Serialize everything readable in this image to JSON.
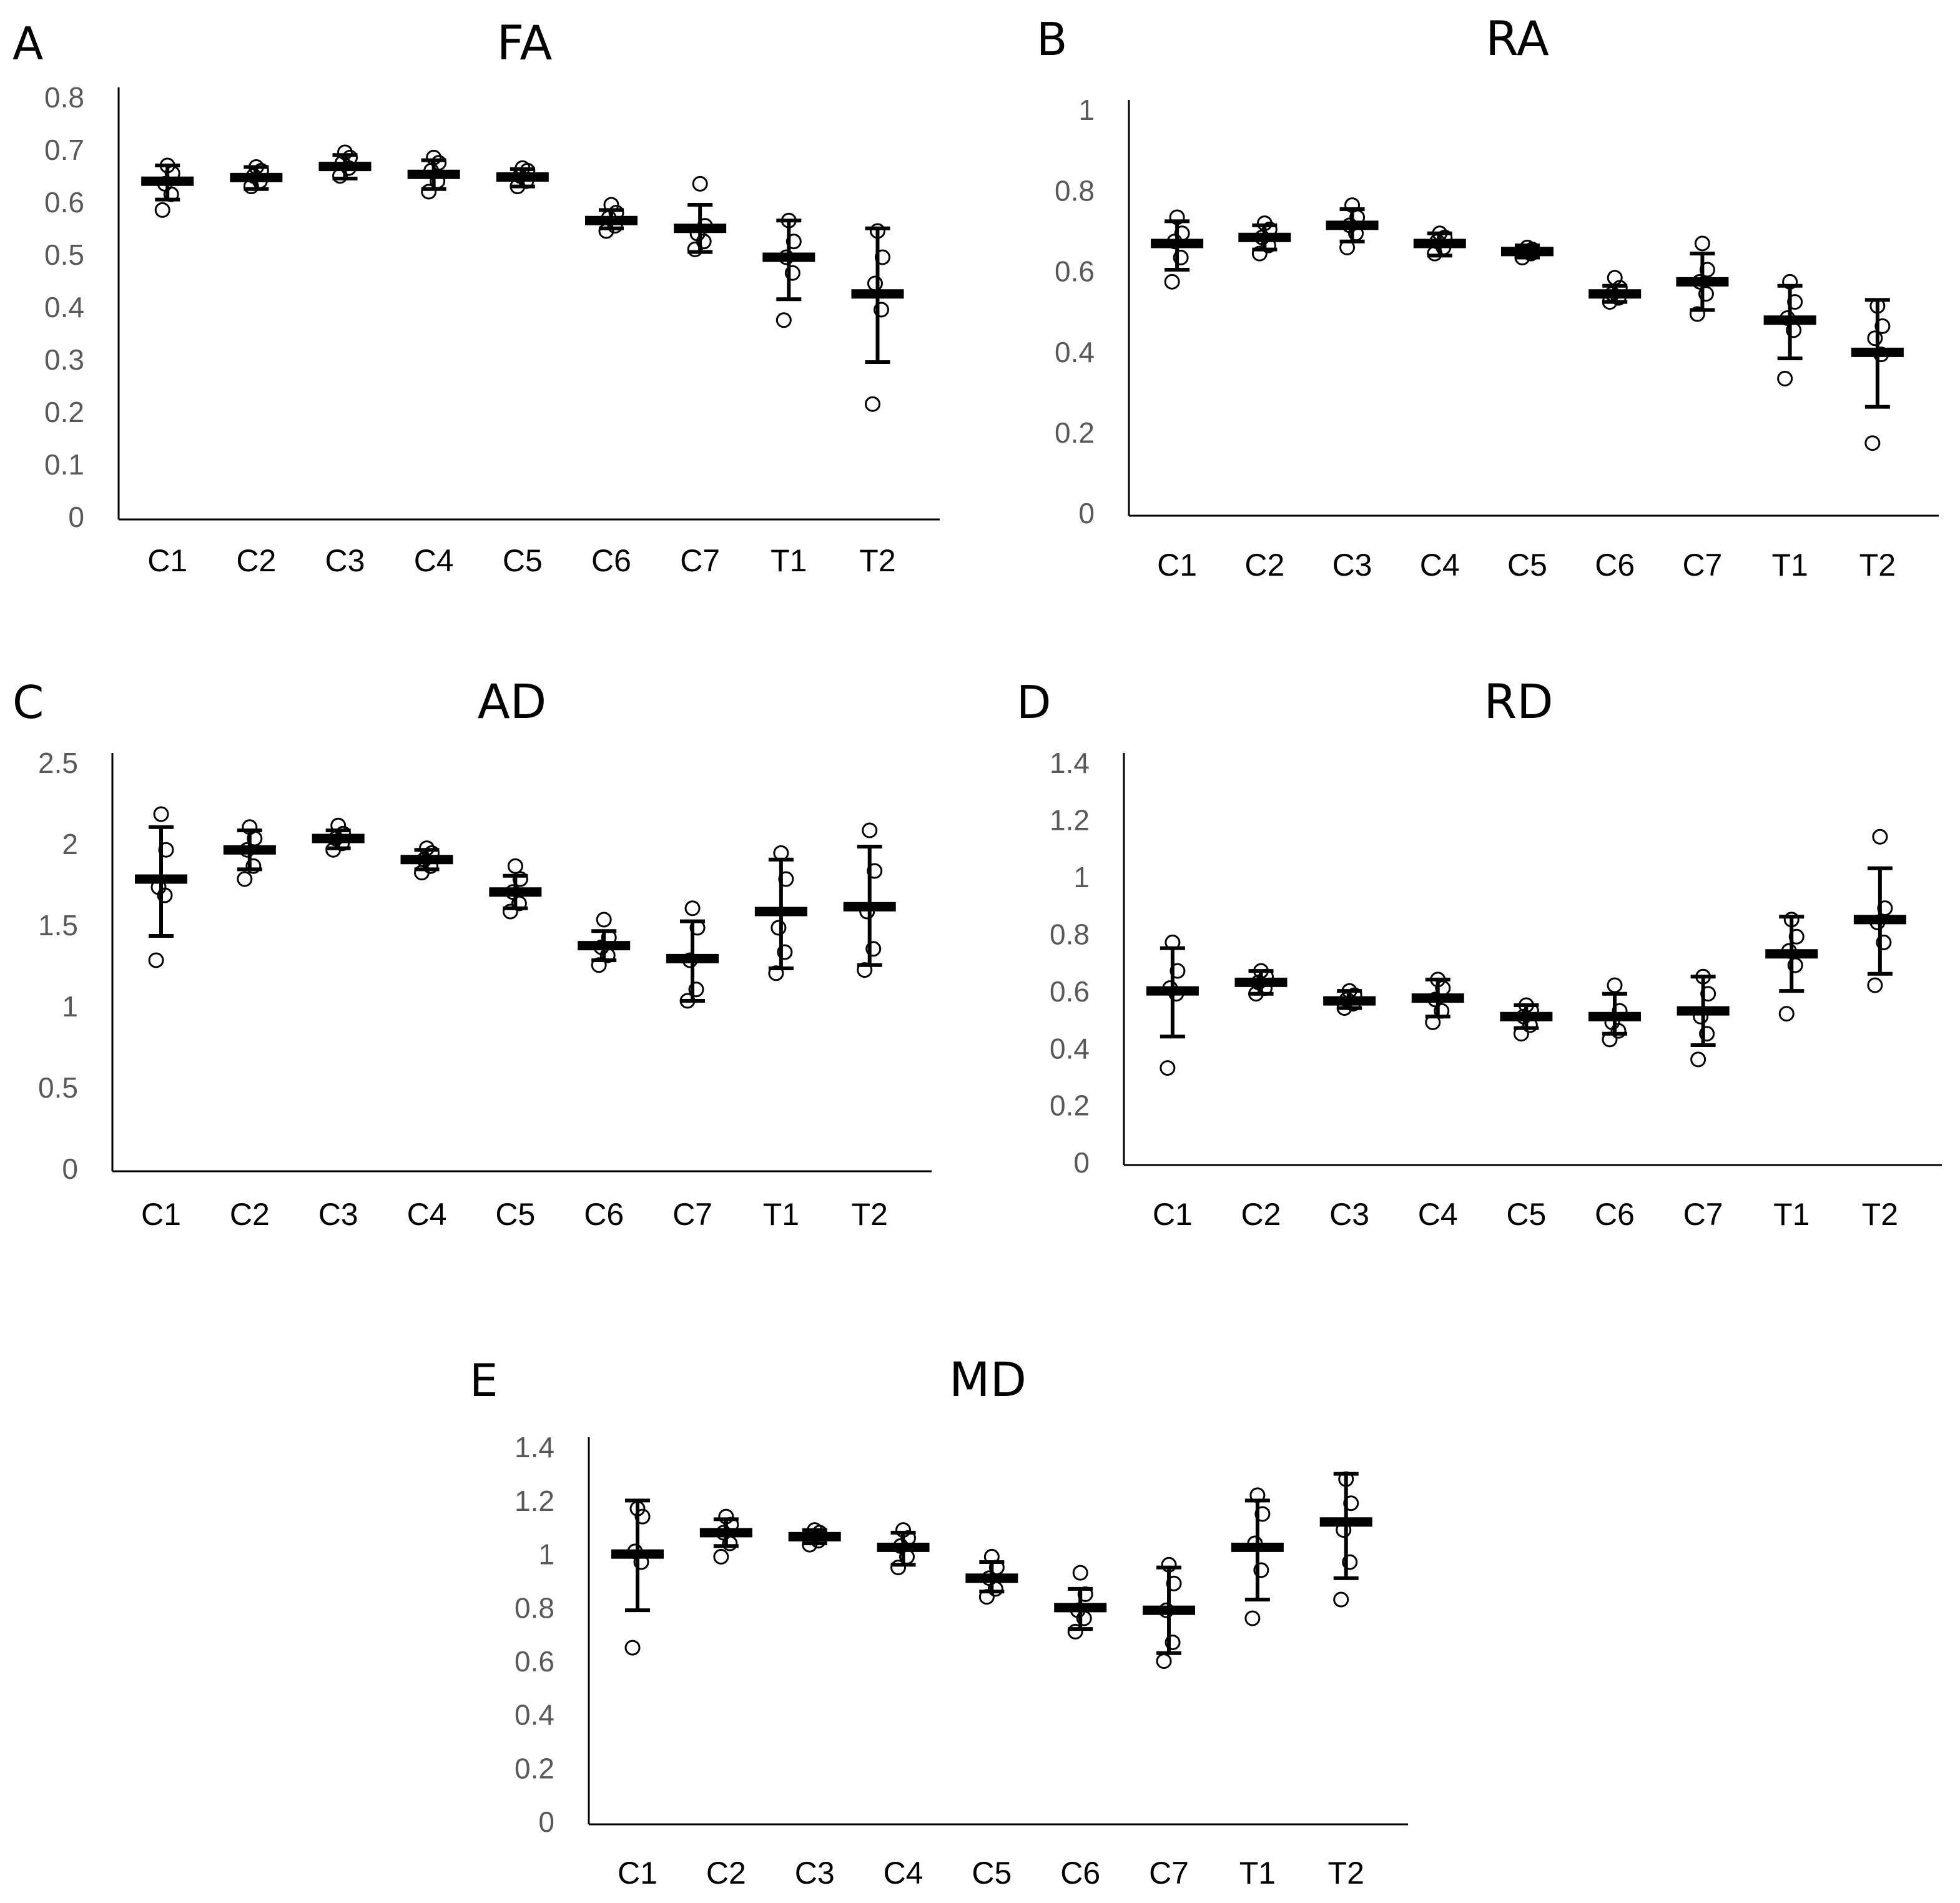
{
  "chart_data": [
    {
      "type": "scatter",
      "panel": "A",
      "title": "FA",
      "categories": [
        "C1",
        "C2",
        "C3",
        "C4",
        "C5",
        "C6",
        "C7",
        "T1",
        "T2"
      ],
      "ylim": [
        0,
        0.8
      ],
      "yticks": [
        "0",
        "0.1",
        "0.2",
        "0.3",
        "0.4",
        "0.5",
        "0.6",
        "0.7",
        "0.8"
      ],
      "mean": [
        0.645,
        0.652,
        0.673,
        0.658,
        0.653,
        0.57,
        0.555,
        0.5,
        0.43
      ],
      "err_low": [
        0.61,
        0.63,
        0.65,
        0.63,
        0.635,
        0.555,
        0.51,
        0.42,
        0.3
      ],
      "err_high": [
        0.675,
        0.672,
        0.695,
        0.685,
        0.668,
        0.59,
        0.6,
        0.57,
        0.555
      ],
      "points": [
        [
          0.59,
          0.62,
          0.64,
          0.66,
          0.675
        ],
        [
          0.635,
          0.645,
          0.655,
          0.665,
          0.672
        ],
        [
          0.655,
          0.67,
          0.68,
          0.69,
          0.7
        ],
        [
          0.625,
          0.645,
          0.665,
          0.68,
          0.69
        ],
        [
          0.635,
          0.645,
          0.655,
          0.665,
          0.67
        ],
        [
          0.55,
          0.56,
          0.575,
          0.585,
          0.6
        ],
        [
          0.515,
          0.53,
          0.545,
          0.56,
          0.64
        ],
        [
          0.38,
          0.47,
          0.5,
          0.53,
          0.57
        ],
        [
          0.22,
          0.4,
          0.45,
          0.5,
          0.55
        ]
      ]
    },
    {
      "type": "scatter",
      "panel": "B",
      "title": "RA",
      "categories": [
        "C1",
        "C2",
        "C3",
        "C4",
        "C5",
        "C6",
        "C7",
        "T1",
        "T2"
      ],
      "ylim": [
        0,
        1
      ],
      "yticks": [
        "0",
        "0.2",
        "0.4",
        "0.6",
        "0.8",
        "1"
      ],
      "mean": [
        0.675,
        0.69,
        0.72,
        0.675,
        0.655,
        0.55,
        0.58,
        0.485,
        0.405
      ],
      "err_low": [
        0.61,
        0.66,
        0.68,
        0.645,
        0.64,
        0.53,
        0.51,
        0.39,
        0.27
      ],
      "err_high": [
        0.73,
        0.72,
        0.76,
        0.7,
        0.67,
        0.57,
        0.65,
        0.57,
        0.535
      ],
      "points": [
        [
          0.58,
          0.64,
          0.68,
          0.7,
          0.74
        ],
        [
          0.65,
          0.67,
          0.69,
          0.71,
          0.725
        ],
        [
          0.665,
          0.7,
          0.72,
          0.74,
          0.77
        ],
        [
          0.65,
          0.665,
          0.68,
          0.69,
          0.7
        ],
        [
          0.64,
          0.65,
          0.655,
          0.66,
          0.665
        ],
        [
          0.53,
          0.54,
          0.55,
          0.565,
          0.59
        ],
        [
          0.5,
          0.55,
          0.58,
          0.61,
          0.675
        ],
        [
          0.34,
          0.46,
          0.49,
          0.53,
          0.58
        ],
        [
          0.18,
          0.4,
          0.44,
          0.47,
          0.52
        ]
      ]
    },
    {
      "type": "scatter",
      "panel": "C",
      "title": "AD",
      "categories": [
        "C1",
        "C2",
        "C3",
        "C4",
        "C5",
        "C6",
        "C7",
        "T1",
        "T2"
      ],
      "ylim": [
        0,
        2.5
      ],
      "yticks": [
        "0",
        "0.5",
        "1",
        "1.5",
        "2",
        "2.5"
      ],
      "mean": [
        1.8,
        1.98,
        2.05,
        1.92,
        1.72,
        1.39,
        1.31,
        1.6,
        1.63
      ],
      "err_low": [
        1.45,
        1.86,
        1.99,
        1.86,
        1.62,
        1.3,
        1.05,
        1.25,
        1.27
      ],
      "err_high": [
        2.12,
        2.1,
        2.1,
        1.98,
        1.82,
        1.48,
        1.54,
        1.92,
        2.0
      ],
      "points": [
        [
          1.3,
          1.7,
          1.75,
          1.98,
          2.2
        ],
        [
          1.8,
          1.88,
          1.98,
          2.05,
          2.12
        ],
        [
          1.98,
          2.02,
          2.05,
          2.08,
          2.13
        ],
        [
          1.84,
          1.88,
          1.92,
          1.96,
          1.99
        ],
        [
          1.6,
          1.65,
          1.72,
          1.8,
          1.88
        ],
        [
          1.27,
          1.33,
          1.38,
          1.44,
          1.55
        ],
        [
          1.05,
          1.12,
          1.3,
          1.5,
          1.62
        ],
        [
          1.22,
          1.35,
          1.5,
          1.8,
          1.96
        ],
        [
          1.24,
          1.37,
          1.6,
          1.85,
          2.1
        ]
      ]
    },
    {
      "type": "scatter",
      "panel": "D",
      "title": "RD",
      "categories": [
        "C1",
        "C2",
        "C3",
        "C4",
        "C5",
        "C6",
        "C7",
        "T1",
        "T2"
      ],
      "ylim": [
        0,
        1.4
      ],
      "yticks": [
        "0",
        "0.2",
        "0.4",
        "0.6",
        "0.8",
        "1",
        "1.2",
        "1.4"
      ],
      "mean": [
        0.61,
        0.64,
        0.575,
        0.585,
        0.52,
        0.52,
        0.54,
        0.74,
        0.86
      ],
      "err_low": [
        0.45,
        0.6,
        0.55,
        0.52,
        0.48,
        0.46,
        0.42,
        0.61,
        0.67
      ],
      "err_high": [
        0.76,
        0.68,
        0.61,
        0.65,
        0.56,
        0.6,
        0.66,
        0.87,
        1.04
      ],
      "points": [
        [
          0.34,
          0.6,
          0.62,
          0.68,
          0.78
        ],
        [
          0.6,
          0.62,
          0.64,
          0.66,
          0.68
        ],
        [
          0.55,
          0.565,
          0.58,
          0.595,
          0.61
        ],
        [
          0.5,
          0.54,
          0.58,
          0.62,
          0.65
        ],
        [
          0.46,
          0.49,
          0.52,
          0.54,
          0.56
        ],
        [
          0.44,
          0.47,
          0.5,
          0.54,
          0.63
        ],
        [
          0.37,
          0.46,
          0.52,
          0.6,
          0.66
        ],
        [
          0.53,
          0.7,
          0.75,
          0.8,
          0.86
        ],
        [
          0.63,
          0.78,
          0.85,
          0.9,
          1.15
        ]
      ]
    },
    {
      "type": "scatter",
      "panel": "E",
      "title": "MD",
      "categories": [
        "C1",
        "C2",
        "C3",
        "C4",
        "C5",
        "C6",
        "C7",
        "T1",
        "T2"
      ],
      "ylim": [
        0,
        1.4
      ],
      "yticks": [
        "0",
        "0.2",
        "0.4",
        "0.6",
        "0.8",
        "1",
        "1.2",
        "1.4"
      ],
      "mean": [
        1.01,
        1.09,
        1.075,
        1.035,
        0.92,
        0.81,
        0.8,
        1.035,
        1.13
      ],
      "err_low": [
        0.8,
        1.04,
        1.05,
        0.97,
        0.87,
        0.73,
        0.64,
        0.84,
        0.92
      ],
      "err_high": [
        1.21,
        1.14,
        1.1,
        1.09,
        0.98,
        0.88,
        0.96,
        1.21,
        1.31
      ],
      "points": [
        [
          0.66,
          0.98,
          1.02,
          1.15,
          1.18
        ],
        [
          1.0,
          1.05,
          1.09,
          1.12,
          1.15
        ],
        [
          1.045,
          1.06,
          1.075,
          1.09,
          1.1
        ],
        [
          0.96,
          1.0,
          1.04,
          1.07,
          1.1
        ],
        [
          0.85,
          0.88,
          0.92,
          0.96,
          1.0
        ],
        [
          0.72,
          0.77,
          0.8,
          0.86,
          0.94
        ],
        [
          0.61,
          0.68,
          0.8,
          0.9,
          0.97
        ],
        [
          0.77,
          0.95,
          1.05,
          1.16,
          1.23
        ],
        [
          0.84,
          0.98,
          1.1,
          1.2,
          1.29
        ]
      ]
    }
  ]
}
